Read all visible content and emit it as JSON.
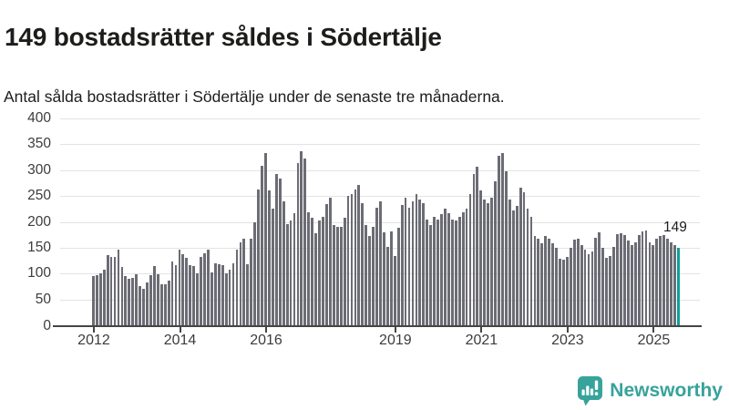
{
  "header": {
    "title": "149 bostadsrätter såldes i Södertälje",
    "subtitle": "Antal sålda bostadsrätter i Södertälje under de senaste tre månaderna."
  },
  "chart_data": {
    "type": "bar",
    "title": "149 bostadsrätter såldes i Södertälje",
    "subtitle": "Antal sålda bostadsrätter i Södertälje under de senaste tre månaderna.",
    "ylim": [
      0,
      400
    ],
    "y_ticks": [
      0,
      50,
      100,
      150,
      200,
      250,
      300,
      350,
      400
    ],
    "grid": "horizontal",
    "x_ticks": [
      {
        "label": "2012",
        "month_index": 0
      },
      {
        "label": "2014",
        "month_index": 24
      },
      {
        "label": "2016",
        "month_index": 48
      },
      {
        "label": "2019",
        "month_index": 84
      },
      {
        "label": "2021",
        "month_index": 108
      },
      {
        "label": "2023",
        "month_index": 132
      },
      {
        "label": "2025",
        "month_index": 156
      }
    ],
    "values": [
      95,
      97,
      100,
      108,
      135,
      132,
      133,
      146,
      113,
      95,
      90,
      92,
      98,
      76,
      71,
      82,
      97,
      114,
      99,
      80,
      80,
      86,
      124,
      117,
      146,
      137,
      131,
      117,
      114,
      100,
      132,
      139,
      146,
      102,
      120,
      118,
      117,
      100,
      108,
      120,
      146,
      161,
      167,
      118,
      167,
      199,
      263,
      308,
      333,
      260,
      225,
      292,
      283,
      239,
      196,
      203,
      216,
      313,
      336,
      322,
      219,
      208,
      178,
      202,
      210,
      234,
      246,
      193,
      190,
      190,
      208,
      251,
      254,
      263,
      272,
      237,
      193,
      172,
      190,
      228,
      240,
      179,
      151,
      182,
      134,
      189,
      232,
      246,
      227,
      239,
      254,
      243,
      236,
      205,
      194,
      210,
      205,
      215,
      225,
      216,
      205,
      203,
      210,
      219,
      225,
      254,
      292,
      307,
      260,
      243,
      237,
      246,
      278,
      327,
      333,
      298,
      243,
      222,
      231,
      266,
      257,
      225,
      210,
      172,
      168,
      158,
      172,
      168,
      158,
      149,
      129,
      127,
      132,
      149,
      165,
      167,
      155,
      146,
      137,
      143,
      170,
      180,
      149,
      131,
      134,
      152,
      177,
      178,
      175,
      164,
      155,
      161,
      175,
      181,
      184,
      161,
      155,
      167,
      173,
      175,
      168,
      161,
      155,
      149
    ],
    "highlight_last_bar": true,
    "last_value_label": "149",
    "colors": {
      "bar": "#6c6c75",
      "highlight": "#0f9f99"
    }
  },
  "footer": {
    "brand": "Newsworthy",
    "logo_icon": "newsworthy-speech-bubble-bar-chart-icon",
    "brand_color": "#37a39b"
  }
}
